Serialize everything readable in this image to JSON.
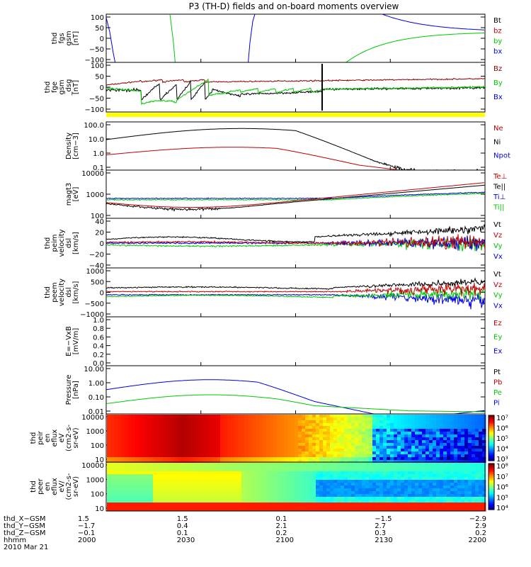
{
  "title": "P3 (TH-D) fields and on-board moments overview",
  "colors": {
    "black": "#000000",
    "red": "#c00000",
    "dark_red": "#8b0000",
    "green": "#00c800",
    "blue": "#0000e0",
    "yellow": "#ffff00"
  },
  "chart_data": [
    {
      "id": "fgs",
      "type": "line",
      "ylabel": [
        "thd",
        "fgs",
        "gsm",
        "[nT]"
      ],
      "yticks": [
        "100",
        "50",
        "0",
        "−50",
        "−100"
      ],
      "ylim": [
        -100,
        100
      ],
      "legend": [
        {
          "label": "Bt",
          "color": "#000000"
        },
        {
          "label": "bz",
          "color": "#c00000"
        },
        {
          "label": "by",
          "color": "#00c800"
        },
        {
          "label": "bx",
          "color": "#0000e0"
        }
      ]
    },
    {
      "id": "fge",
      "type": "line",
      "ylabel": [
        "thd",
        "fge",
        "gsm",
        "_dsg",
        "[nT]"
      ],
      "yticks": [
        "100",
        "50",
        "0",
        "−50",
        "−100"
      ],
      "ylim": [
        -120,
        120
      ],
      "legend": [
        {
          "label": "Bz",
          "color": "#8b0000"
        },
        {
          "label": "By",
          "color": "#00c800"
        },
        {
          "label": "Bx",
          "color": "#0000e0"
        }
      ]
    },
    {
      "id": "density",
      "type": "line",
      "ylabel": [
        "Density",
        "[cm−3]"
      ],
      "yticks": [
        "100.0",
        "10.0",
        "1.0",
        "0.1"
      ],
      "ylim": [
        0.1,
        300
      ],
      "yscale": "log",
      "legend": [
        {
          "label": "Ne",
          "color": "#c00000"
        },
        {
          "label": "Ni",
          "color": "#000000"
        },
        {
          "label": "Npot",
          "color": "#0000e0"
        }
      ]
    },
    {
      "id": "temp",
      "type": "line",
      "ylabel": [
        "magt3",
        "[eV]"
      ],
      "yticks": [
        "10000",
        "1000",
        "100"
      ],
      "ylim": [
        30,
        10000
      ],
      "yscale": "log",
      "legend": [
        {
          "label": "Te⊥",
          "color": "#c00000"
        },
        {
          "label": "Te||",
          "color": "#000000"
        },
        {
          "label": "Ti⊥",
          "color": "#0000e0"
        },
        {
          "label": "Ti||",
          "color": "#00c800"
        }
      ]
    },
    {
      "id": "peimvel",
      "type": "line",
      "ylabel": [
        "thd",
        "peim",
        "velocity",
        "dsl",
        "[km/s]"
      ],
      "yticks": [
        "40",
        "20",
        "0",
        "−20",
        "−40"
      ],
      "ylim": [
        -40,
        40
      ],
      "legend": [
        {
          "label": "Vt",
          "color": "#000000"
        },
        {
          "label": "Vz",
          "color": "#c00000"
        },
        {
          "label": "Vy",
          "color": "#00c800"
        },
        {
          "label": "Vx",
          "color": "#0000e0"
        }
      ]
    },
    {
      "id": "peemvel",
      "type": "line",
      "ylabel": [
        "thd",
        "peem",
        "velocity",
        "dsl",
        "[km/s]"
      ],
      "yticks": [
        "1000",
        "500",
        "0",
        "−500",
        "−1000"
      ],
      "ylim": [
        -1000,
        1000
      ],
      "legend": [
        {
          "label": "Vt",
          "color": "#000000"
        },
        {
          "label": "Vz",
          "color": "#c00000"
        },
        {
          "label": "Vy",
          "color": "#00c800"
        },
        {
          "label": "Vx",
          "color": "#0000e0"
        }
      ]
    },
    {
      "id": "efield",
      "type": "line",
      "ylabel": [
        "E=−VxB",
        "[mV/m]"
      ],
      "yticks": [
        "1.0",
        "0.8",
        "0.6",
        "0.4",
        "0.2",
        "0.0"
      ],
      "ylim": [
        0,
        1
      ],
      "legend": [
        {
          "label": "Ez",
          "color": "#c00000"
        },
        {
          "label": "Ey",
          "color": "#00c800"
        },
        {
          "label": "Ex",
          "color": "#0000e0"
        }
      ]
    },
    {
      "id": "pressure",
      "type": "line",
      "ylabel": [
        "Pressure",
        "[nPa]"
      ],
      "yticks": [
        "10.00",
        "1.00",
        "0.10",
        "0.01"
      ],
      "ylim": [
        0.005,
        30
      ],
      "yscale": "log",
      "legend": [
        {
          "label": "Pt",
          "color": "#000000"
        },
        {
          "label": "Pb",
          "color": "#c00000"
        },
        {
          "label": "Pe",
          "color": "#00c800"
        },
        {
          "label": "Pi",
          "color": "#0000e0"
        }
      ]
    },
    {
      "id": "peir",
      "type": "heatmap",
      "ylabel": [
        "thd",
        "peir",
        "en",
        "eflux",
        "eV",
        "(cm2-s-",
        "sr-eV)"
      ],
      "yticks": [
        "10000",
        "1000",
        "100",
        "10"
      ],
      "ylim": [
        5,
        25000
      ],
      "yscale": "log",
      "colorbar": {
        "labels": [
          "10⁷",
          "10⁶",
          "10⁵",
          "10⁴",
          "10³"
        ]
      }
    },
    {
      "id": "peer",
      "type": "heatmap",
      "ylabel": [
        "thd",
        "peer",
        "en",
        "eflux",
        "eV/",
        "(cm2-s-",
        "sr-eV)"
      ],
      "yticks": [
        "10000",
        "1000",
        "100",
        "10"
      ],
      "ylim": [
        5,
        25000
      ],
      "yscale": "log",
      "colorbar": {
        "labels": [
          "10⁸",
          "10⁷",
          "10⁶",
          "10⁵",
          "10⁴"
        ]
      }
    }
  ],
  "xaxis": {
    "rows": [
      {
        "label": "thd_X−GSM",
        "values": [
          "1.5",
          "1.5",
          "0.1",
          "−1.5",
          "−2.9"
        ]
      },
      {
        "label": "thd_Y−GSM",
        "values": [
          "−1.7",
          "0.4",
          "2.1",
          "2.7",
          "2.9"
        ]
      },
      {
        "label": "thd_Z−GSM",
        "values": [
          "−0.1",
          "0.1",
          "0.2",
          "0.3",
          "0.2"
        ]
      },
      {
        "label": "hhmm",
        "values": [
          "2000",
          "2030",
          "2100",
          "2130",
          "2200"
        ]
      }
    ],
    "date": "2010 Mar 21"
  }
}
